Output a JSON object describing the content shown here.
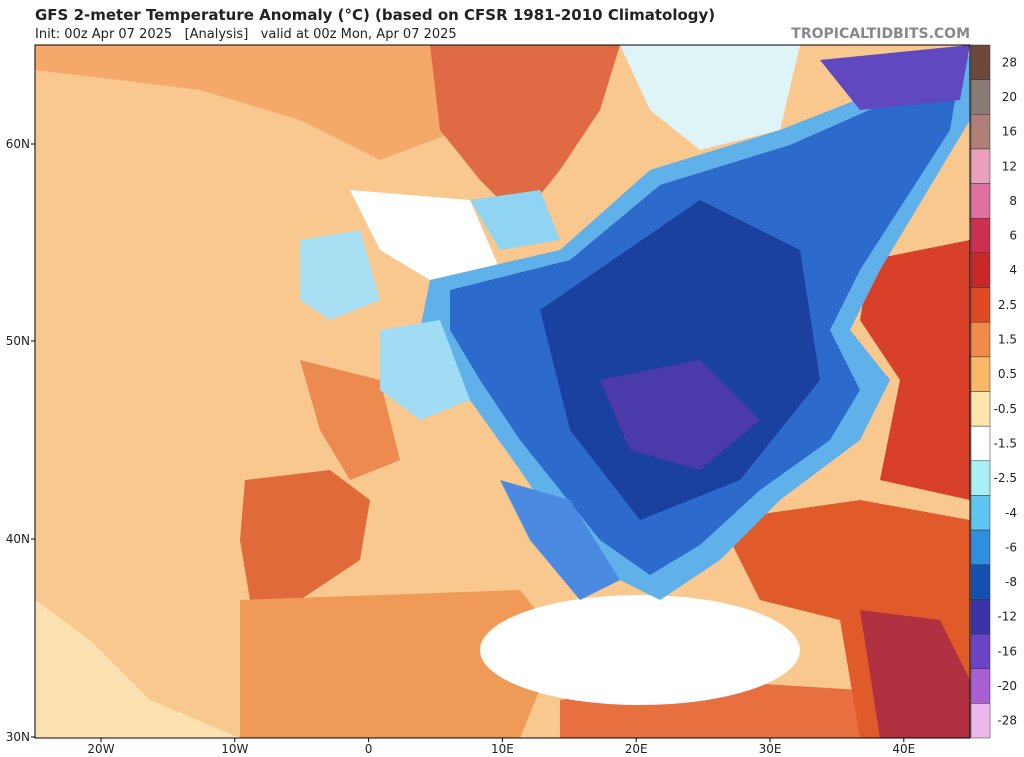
{
  "header": {
    "title": "GFS 2-meter Temperature Anomaly (°C) (based on CFSR 1981-2010 Climatology)",
    "subtitle": "Init: 00z Apr 07 2025   [Analysis]   valid at 00z Mon, Apr 07 2025",
    "watermark": "TROPICALTIDBITS.COM"
  },
  "axes": {
    "lat_labels": [
      "60N",
      "50N",
      "40N",
      "30N"
    ],
    "lon_labels": [
      "20W",
      "10W",
      "0",
      "10E",
      "20E",
      "30E",
      "40E"
    ]
  },
  "colorbar": {
    "labels": [
      "28",
      "20",
      "16",
      "12",
      "8",
      "6",
      "4",
      "2.5",
      "1.5",
      "0.5",
      "-0.5",
      "-1.5",
      "-2.5",
      "-4",
      "-6",
      "-8",
      "-12",
      "-16",
      "-20",
      "-28"
    ],
    "colors": [
      "#6b4a3a",
      "#8a7a76",
      "#b08078",
      "#e8a0bc",
      "#e070a0",
      "#cc3050",
      "#c82828",
      "#e04a22",
      "#f08a48",
      "#f8b868",
      "#fde6ac",
      "#ffffff",
      "#a8f0f4",
      "#60c4f0",
      "#2f8ee0",
      "#1450b0",
      "#3a34a8",
      "#6a44c4",
      "#a860d4",
      "#eab8ea"
    ]
  }
}
